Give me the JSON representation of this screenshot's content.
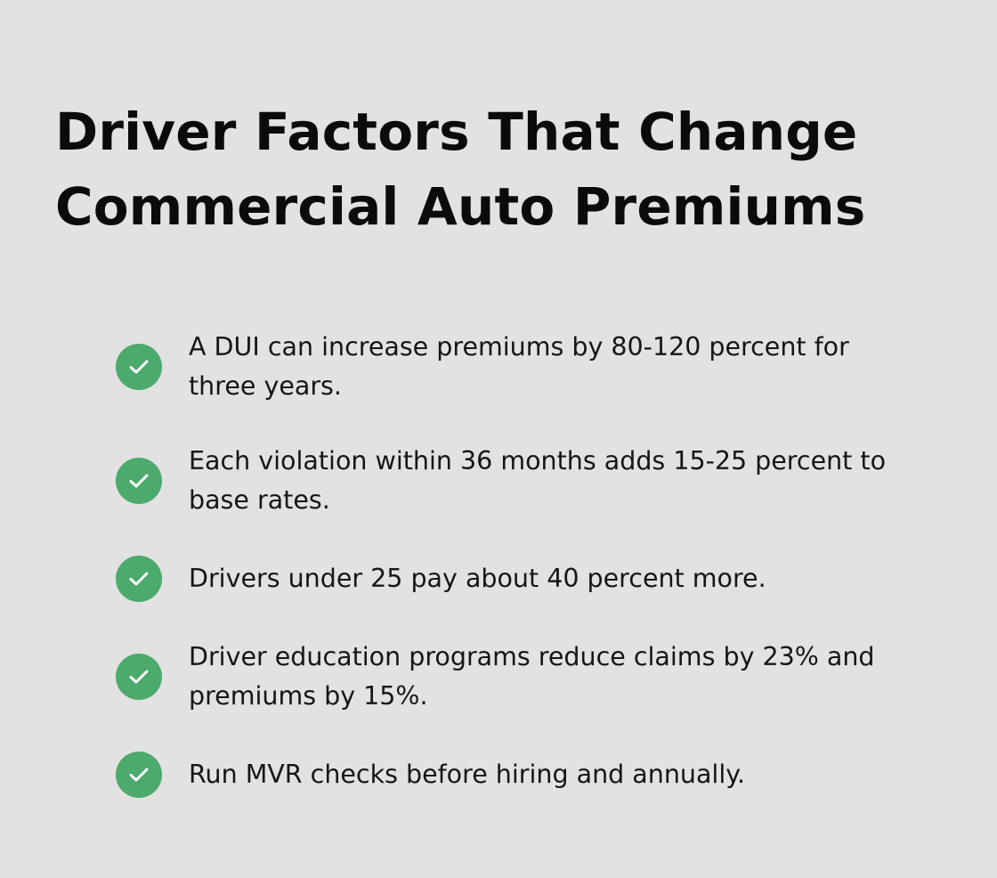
{
  "title": {
    "line1": "Driver Factors That Change",
    "line2": "Commercial Auto Premiums"
  },
  "items": [
    {
      "icon": "check-icon",
      "line1": "A DUI can increase premiums by 80-120 percent for",
      "line2": "three years."
    },
    {
      "icon": "check-icon",
      "line1": "Each violation within 36 months adds 15-25 percent to",
      "line2": "base rates."
    },
    {
      "icon": "check-icon",
      "line1": "Drivers under 25 pay about 40 percent more."
    },
    {
      "icon": "check-icon",
      "line1": "Driver education programs reduce claims by 23% and",
      "line2": "premiums by 15%."
    },
    {
      "icon": "check-icon",
      "line1": "Run MVR checks before hiring and annually."
    }
  ],
  "colors": {
    "background": "#e1e2e1",
    "accent": "#4caa6c",
    "text": "#161616"
  }
}
